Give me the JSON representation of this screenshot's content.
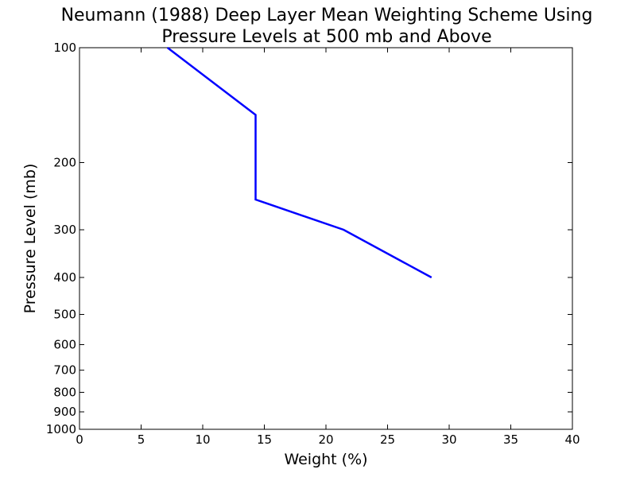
{
  "chart_data": {
    "type": "line",
    "title_line1": "Neumann (1988) Deep Layer Mean Weighting Scheme Using",
    "title_line2": "Pressure Levels at 500 mb and Above",
    "xlabel": "Weight (%)",
    "ylabel": "Pressure Level (mb)",
    "xlim": [
      0,
      40
    ],
    "ylim": [
      1000,
      100
    ],
    "yscale": "log",
    "grid": false,
    "line_color": "#0000ff",
    "x_ticks": [
      0,
      5,
      10,
      15,
      20,
      25,
      30,
      35,
      40
    ],
    "x_tick_labels": [
      "0",
      "5",
      "10",
      "15",
      "20",
      "25",
      "30",
      "35",
      "40"
    ],
    "y_ticks": [
      100,
      200,
      300,
      400,
      500,
      600,
      700,
      800,
      900,
      1000
    ],
    "y_tick_labels": [
      "100",
      "200",
      "300",
      "400",
      "500",
      "600",
      "700",
      "800",
      "900",
      "1000"
    ],
    "series": [
      {
        "x": [
          7.14,
          14.29,
          14.29,
          21.43,
          28.57
        ],
        "y": [
          100,
          150,
          250,
          300,
          400
        ]
      }
    ]
  }
}
